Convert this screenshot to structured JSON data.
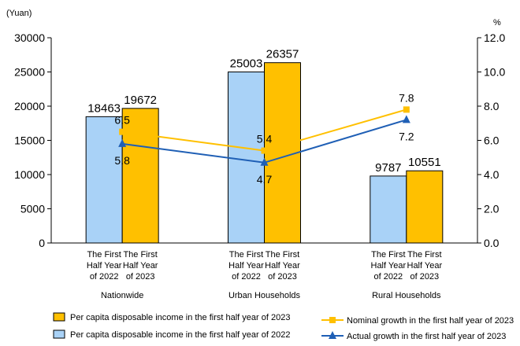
{
  "chart_data": {
    "type": "bar",
    "y_left_unit": "(Yuan)",
    "y_right_unit": "%",
    "ylim_left": [
      0,
      30000
    ],
    "yticks_left": [
      "0",
      "5000",
      "10000",
      "15000",
      "20000",
      "25000",
      "30000"
    ],
    "ylim_right": [
      0,
      12
    ],
    "yticks_right": [
      "0.0",
      "2.0",
      "4.0",
      "6.0",
      "8.0",
      "10.0",
      "12.0"
    ],
    "groups": [
      "Nationwide",
      "Urban Households",
      "Rural Households"
    ],
    "bar_labels": [
      [
        "The First",
        "Half Year",
        "of 2022"
      ],
      [
        "The First",
        "Half Year",
        "of 2023"
      ]
    ],
    "bar_series": [
      {
        "name": "Per capita disposable income in the first half year of 2022",
        "color": "#a9d2f7",
        "values": [
          18463,
          25003,
          9787
        ]
      },
      {
        "name": "Per capita disposable income in the first half year of 2023",
        "color": "#ffc000",
        "values": [
          19672,
          26357,
          10551
        ]
      }
    ],
    "line_series": [
      {
        "name": "Nominal growth in the first half year of 2023",
        "color": "#ffc000",
        "marker": "square",
        "values": [
          6.5,
          5.4,
          7.8
        ],
        "value_labels": [
          "6.5",
          "5.4",
          "7.8"
        ]
      },
      {
        "name": "Actual growth in the first half year of 2023",
        "color": "#1f5fb5",
        "marker": "triangle",
        "values": [
          5.8,
          4.7,
          7.2
        ],
        "value_labels": [
          "5.8",
          "4.7",
          "7.2"
        ]
      }
    ],
    "legend_position": "bottom",
    "grid": false
  }
}
